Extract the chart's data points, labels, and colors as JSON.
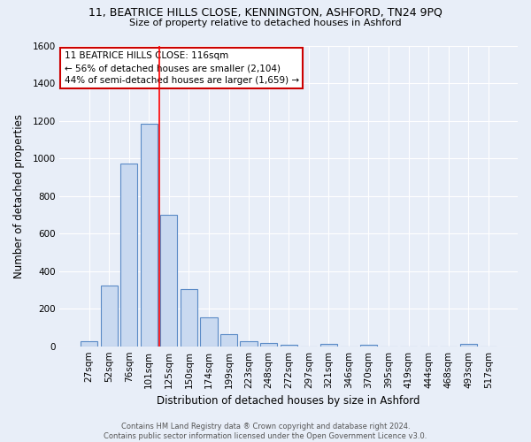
{
  "title1": "11, BEATRICE HILLS CLOSE, KENNINGTON, ASHFORD, TN24 9PQ",
  "title2": "Size of property relative to detached houses in Ashford",
  "xlabel": "Distribution of detached houses by size in Ashford",
  "ylabel": "Number of detached properties",
  "footer1": "Contains HM Land Registry data ® Crown copyright and database right 2024.",
  "footer2": "Contains public sector information licensed under the Open Government Licence v3.0.",
  "bar_labels": [
    "27sqm",
    "52sqm",
    "76sqm",
    "101sqm",
    "125sqm",
    "150sqm",
    "174sqm",
    "199sqm",
    "223sqm",
    "248sqm",
    "272sqm",
    "297sqm",
    "321sqm",
    "346sqm",
    "370sqm",
    "395sqm",
    "419sqm",
    "444sqm",
    "468sqm",
    "493sqm",
    "517sqm"
  ],
  "bar_values": [
    25,
    325,
    970,
    1185,
    700,
    305,
    155,
    65,
    28,
    18,
    10,
    0,
    12,
    0,
    10,
    0,
    0,
    0,
    0,
    12,
    0
  ],
  "bar_color": "#c9d9f0",
  "bar_edge_color": "#5a8ac6",
  "bg_color": "#e8eef8",
  "grid_color": "#ffffff",
  "red_line_x": 3.5,
  "annotation_line1": "11 BEATRICE HILLS CLOSE: 116sqm",
  "annotation_line2": "← 56% of detached houses are smaller (2,104)",
  "annotation_line3": "44% of semi-detached houses are larger (1,659) →",
  "annotation_box_color": "#ffffff",
  "annotation_box_edge": "#cc0000",
  "ylim": [
    0,
    1600
  ],
  "yticks": [
    0,
    200,
    400,
    600,
    800,
    1000,
    1200,
    1400,
    1600
  ]
}
